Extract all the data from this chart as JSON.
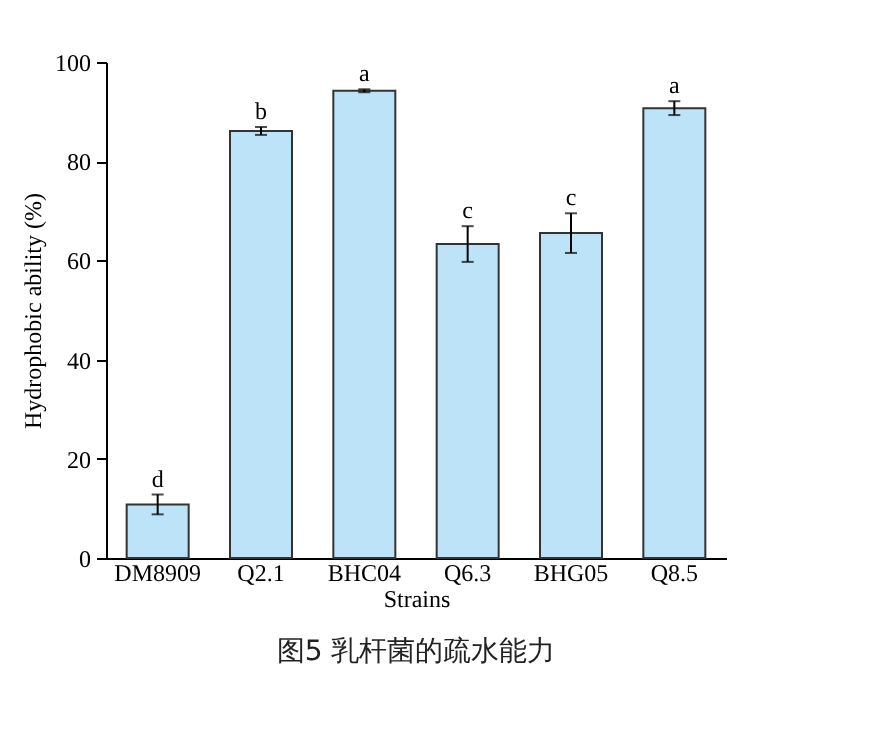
{
  "chart_data": {
    "type": "bar",
    "title": "图5 乳杆菌的疏水能力",
    "xlabel": "Strains",
    "ylabel": "Hydrophobic ability (%)",
    "categories": [
      "DM8909",
      "Q2.1",
      "BHC04",
      "Q6.3",
      "BHG05",
      "Q8.5"
    ],
    "values": [
      10.8,
      86.1,
      94.2,
      63.3,
      65.5,
      90.7
    ],
    "errors": [
      2.0,
      0.8,
      0.3,
      3.6,
      4.0,
      1.4
    ],
    "color": "#bde3f8",
    "ylim": [
      0,
      100
    ],
    "yticks": [
      0,
      20,
      40,
      60,
      80,
      100
    ],
    "grid": false,
    "annotations": [
      {
        "text": "d",
        "x": "DM8909",
        "y": 12.8
      },
      {
        "text": "b",
        "x": "Q2.1",
        "y": 86.9
      },
      {
        "text": "a",
        "x": "BHC04",
        "y": 94.5
      },
      {
        "text": "c",
        "x": "Q6.3",
        "y": 66.9
      },
      {
        "text": "c",
        "x": "BHG05",
        "y": 69.5
      },
      {
        "text": "a",
        "x": "Q8.5",
        "y": 92.1
      }
    ]
  }
}
